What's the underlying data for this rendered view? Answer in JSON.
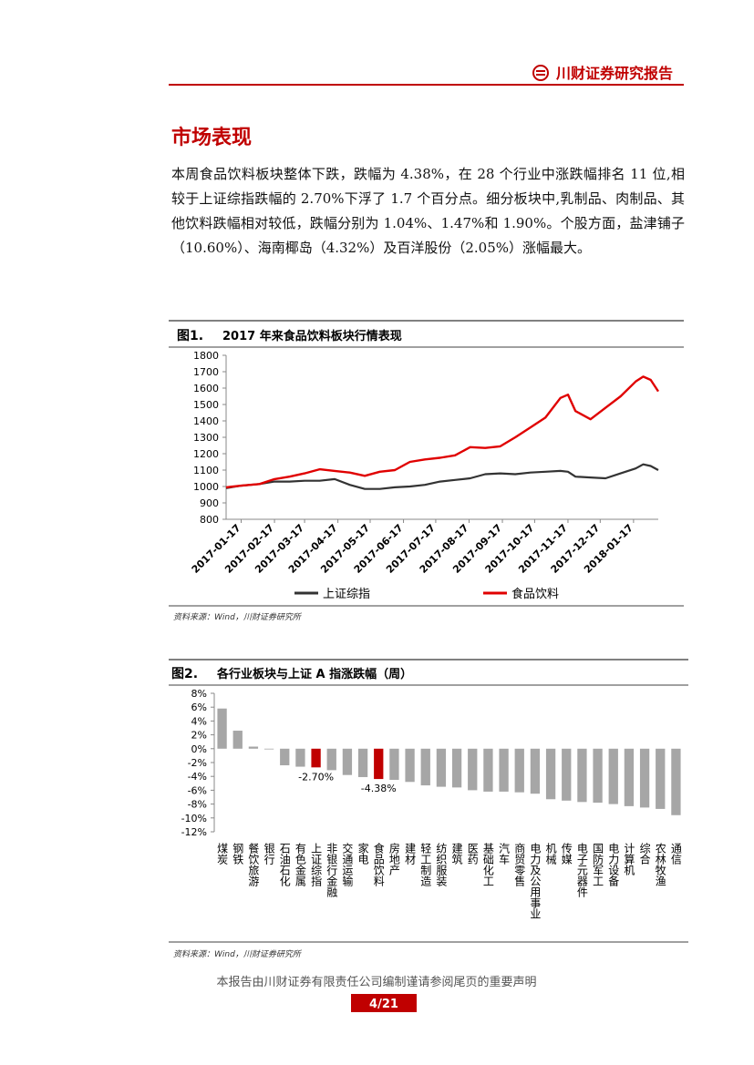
{
  "header": {
    "brand": "川财证券研究报告"
  },
  "section": {
    "title": "市场表现",
    "body": "本周食品饮料板块整体下跌，跌幅为 4.38%，在 28 个行业中涨跌幅排名 11 位,相较于上证综指跌幅的 2.70%下浮了 1.7 个百分点。细分板块中,乳制品、肉制品、其他饮料跌幅相对较低，跌幅分别为 1.04%、1.47%和 1.90%。个股方面，盐津铺子（10.60%）、海南椰岛（4.32%）及百洋股份（2.05%）涨幅最大。"
  },
  "chart_data": [
    {
      "type": "line",
      "label": "图1.",
      "title": "2017 年来食品饮料板块行情表现",
      "source": "资料来源：Wind，川财证券研究所",
      "x": [
        "2017-01-03",
        "2017-01-17",
        "2017-02-03",
        "2017-02-17",
        "2017-03-03",
        "2017-03-17",
        "2017-03-31",
        "2017-04-14",
        "2017-04-28",
        "2017-05-12",
        "2017-05-26",
        "2017-06-09",
        "2017-06-23",
        "2017-07-07",
        "2017-07-21",
        "2017-08-04",
        "2017-08-18",
        "2017-09-01",
        "2017-09-15",
        "2017-09-29",
        "2017-10-13",
        "2017-10-27",
        "2017-11-10",
        "2017-11-17",
        "2017-11-24",
        "2017-12-08",
        "2017-12-22",
        "2018-01-05",
        "2018-01-19",
        "2018-01-26",
        "2018-02-02",
        "2018-02-09"
      ],
      "xlim": [
        "2017-01-03",
        "2018-02-09"
      ],
      "xticks": [
        "2017-01-17",
        "2017-02-17",
        "2017-03-17",
        "2017-04-17",
        "2017-05-17",
        "2017-06-17",
        "2017-07-17",
        "2017-08-17",
        "2017-09-17",
        "2017-10-17",
        "2017-11-17",
        "2017-12-17",
        "2018-01-17"
      ],
      "ylim": [
        800,
        1800
      ],
      "yticks": [
        800,
        900,
        1000,
        1100,
        1200,
        1300,
        1400,
        1500,
        1600,
        1700,
        1800
      ],
      "series": [
        {
          "name": "上证综指",
          "color": "#333333",
          "values": [
            990,
            1005,
            1015,
            1030,
            1030,
            1035,
            1035,
            1045,
            1010,
            985,
            985,
            995,
            1000,
            1010,
            1030,
            1040,
            1050,
            1075,
            1080,
            1075,
            1085,
            1090,
            1095,
            1090,
            1060,
            1055,
            1050,
            1080,
            1110,
            1135,
            1125,
            1100
          ]
        },
        {
          "name": "食品饮料",
          "color": "#e00000",
          "values": [
            995,
            1005,
            1015,
            1045,
            1060,
            1080,
            1105,
            1095,
            1085,
            1065,
            1090,
            1100,
            1150,
            1165,
            1175,
            1190,
            1240,
            1235,
            1245,
            1300,
            1360,
            1420,
            1540,
            1560,
            1460,
            1410,
            1480,
            1550,
            1640,
            1670,
            1650,
            1580
          ]
        }
      ]
    },
    {
      "type": "bar",
      "label": "图2.",
      "title": "各行业板块与上证 A 指涨跌幅（周）",
      "source": "资料来源：Wind，川财证券研究所",
      "categories": [
        "煤炭",
        "钢铁",
        "餐饮旅游",
        "银行",
        "石油石化",
        "有色金属",
        "上证综指",
        "非银行金融",
        "交通运输",
        "家电",
        "食品饮料",
        "房地产",
        "建材",
        "轻工制造",
        "纺织服装",
        "建筑",
        "医药",
        "基础化工",
        "汽车",
        "商贸零售",
        "电力及公用事业",
        "机械",
        "传媒",
        "电子元器件",
        "国防军工",
        "电力设备",
        "计算机",
        "综合",
        "农林牧渔",
        "通信"
      ],
      "values": [
        5.8,
        2.6,
        0.3,
        -0.1,
        -2.4,
        -2.6,
        -2.7,
        -3.1,
        -3.8,
        -4.1,
        -4.38,
        -4.5,
        -4.8,
        -5.3,
        -5.5,
        -5.6,
        -6.0,
        -6.2,
        -6.2,
        -6.3,
        -6.5,
        -7.3,
        -7.5,
        -7.7,
        -7.8,
        -8.0,
        -8.3,
        -8.5,
        -8.7,
        -9.6
      ],
      "value_labels": [
        null,
        null,
        null,
        null,
        null,
        null,
        "-2.70%",
        null,
        null,
        null,
        "-4.38%",
        null,
        null,
        null,
        null,
        null,
        null,
        null,
        null,
        null,
        null,
        null,
        null,
        null,
        null,
        null,
        null,
        null,
        null,
        null
      ],
      "colors": [
        "#a6a6a6",
        "#a6a6a6",
        "#a6a6a6",
        "#a6a6a6",
        "#a6a6a6",
        "#a6a6a6",
        "#c00000",
        "#a6a6a6",
        "#a6a6a6",
        "#a6a6a6",
        "#c00000",
        "#a6a6a6",
        "#a6a6a6",
        "#a6a6a6",
        "#a6a6a6",
        "#a6a6a6",
        "#a6a6a6",
        "#a6a6a6",
        "#a6a6a6",
        "#a6a6a6",
        "#a6a6a6",
        "#a6a6a6",
        "#a6a6a6",
        "#a6a6a6",
        "#a6a6a6",
        "#a6a6a6",
        "#a6a6a6",
        "#a6a6a6",
        "#a6a6a6",
        "#a6a6a6"
      ],
      "ylim": [
        -12,
        8
      ],
      "yticks": [
        {
          "value": 8,
          "label": "8%"
        },
        {
          "value": 6,
          "label": "6%"
        },
        {
          "value": 4,
          "label": "4%"
        },
        {
          "value": 2,
          "label": "2%"
        },
        {
          "value": 0,
          "label": "0%"
        },
        {
          "value": -2,
          "label": "-2%"
        },
        {
          "value": -4,
          "label": "-4%"
        },
        {
          "value": -6,
          "label": "-6%"
        },
        {
          "value": -8,
          "label": "-8%"
        },
        {
          "value": -10,
          "label": "-10%"
        },
        {
          "value": -12,
          "label": "-12%"
        }
      ]
    }
  ],
  "footer": {
    "disclaimer": "本报告由川财证券有限责任公司编制谨请参阅尾页的重要声明",
    "page": "4/21"
  }
}
